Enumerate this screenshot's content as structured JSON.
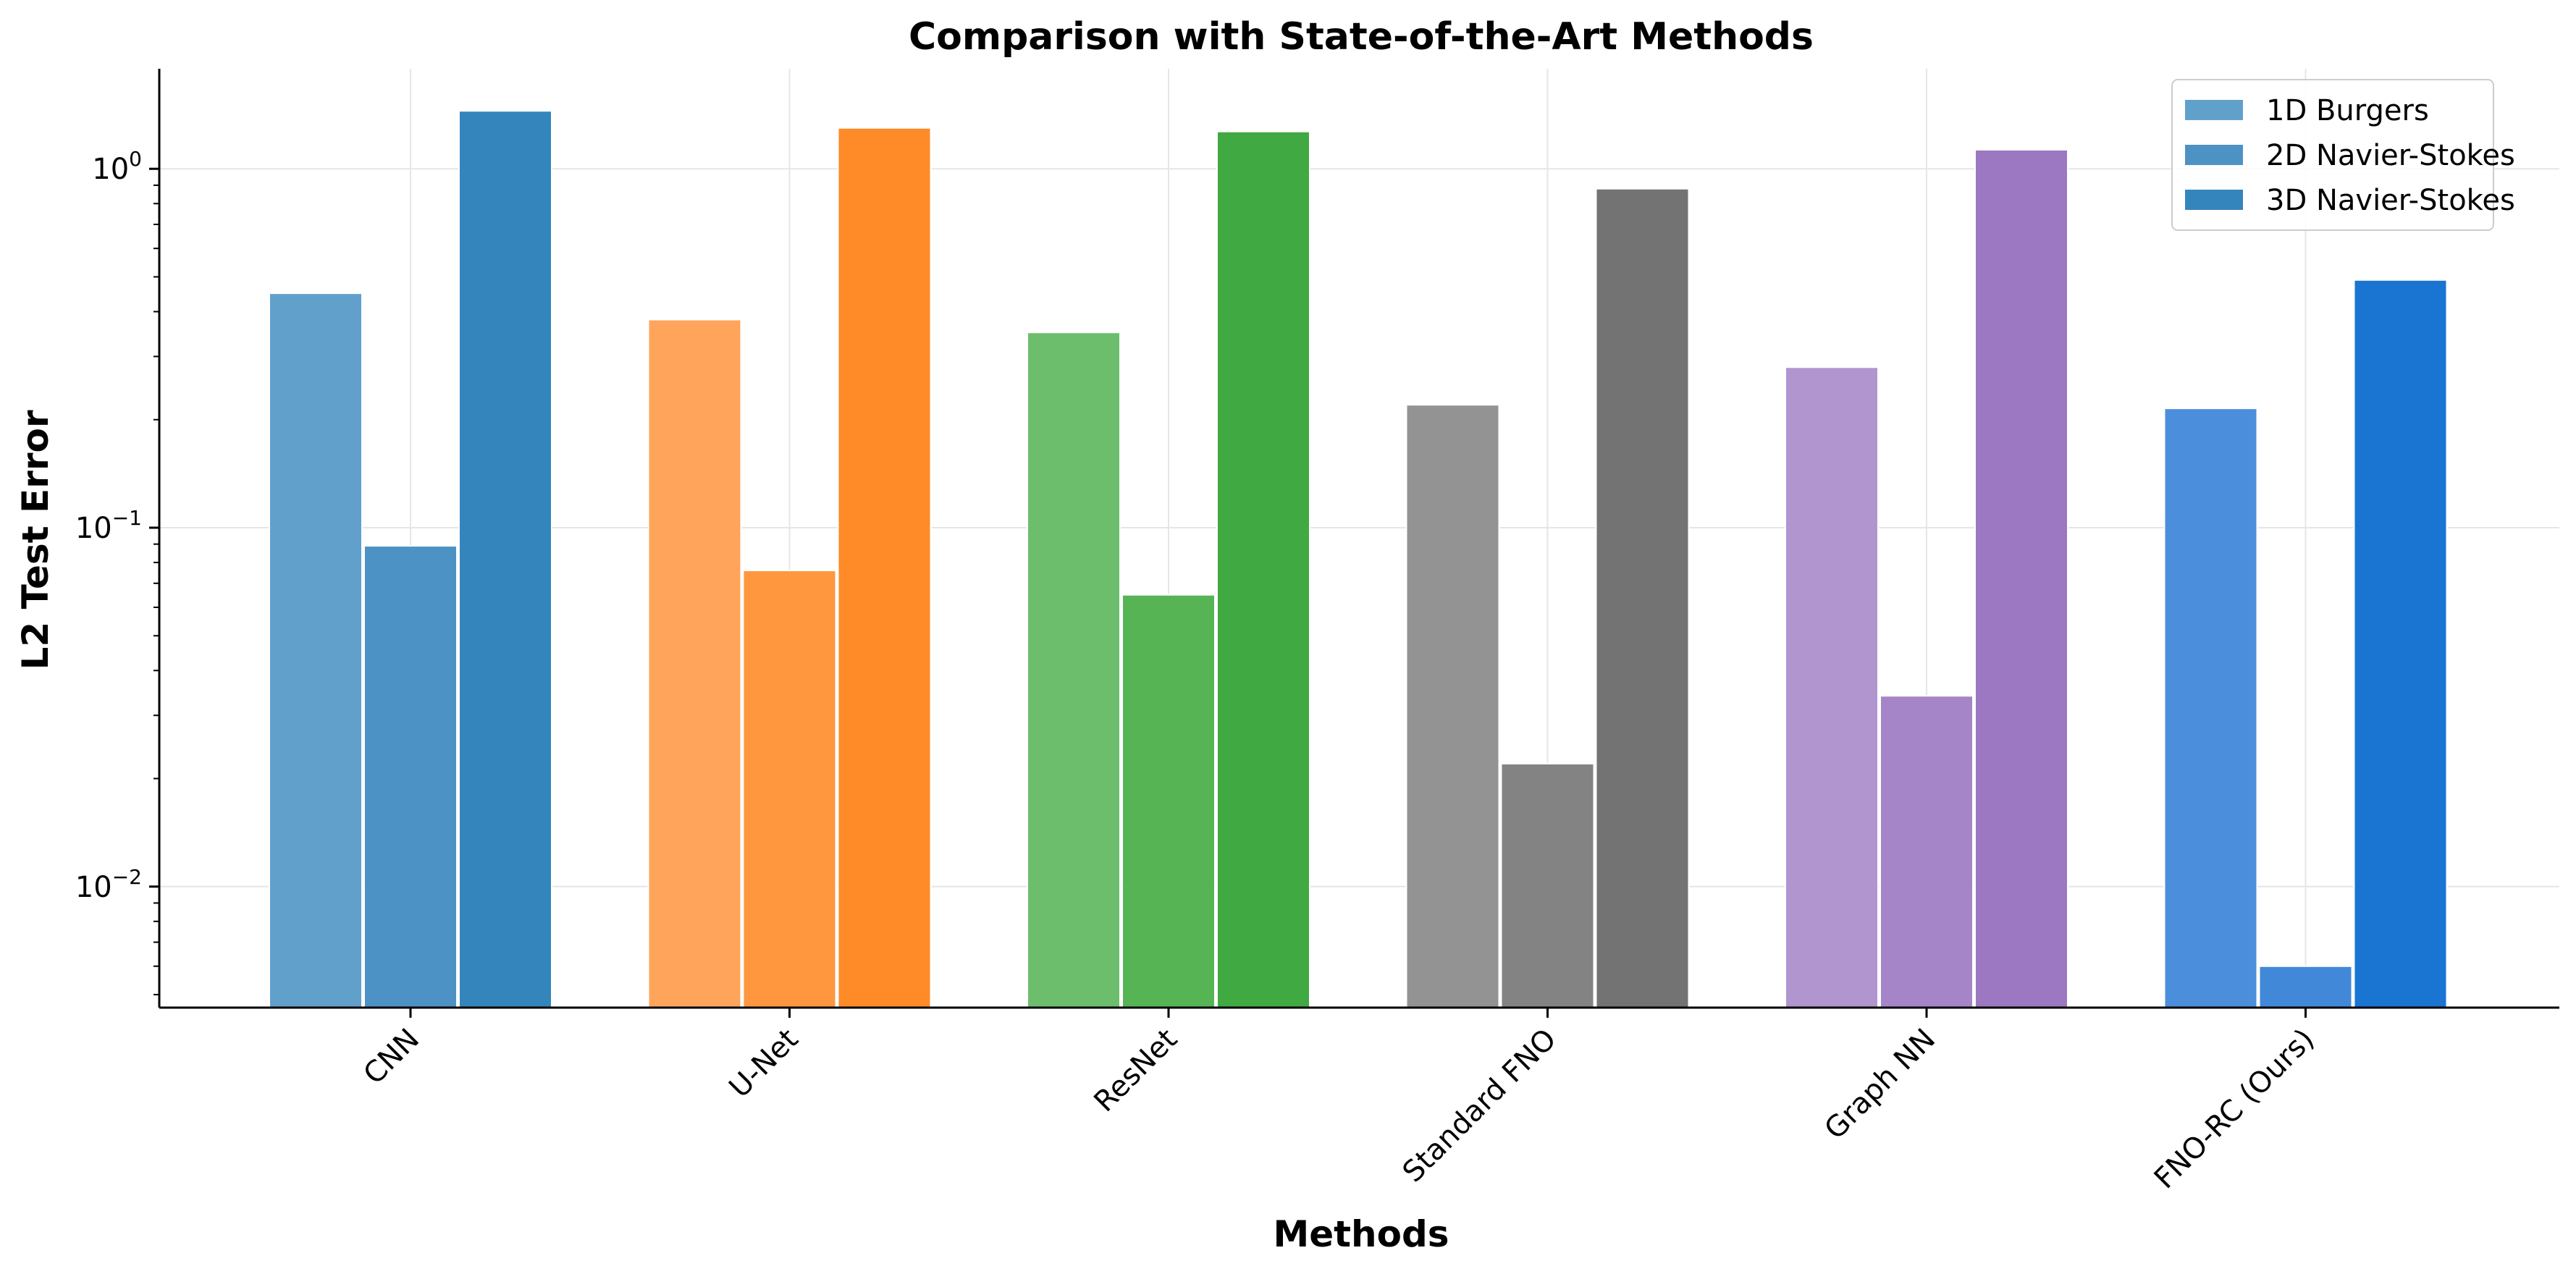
{
  "chart_data": {
    "type": "bar",
    "title": "Comparison with State-of-the-Art Methods",
    "xlabel": "Methods",
    "ylabel": "L2 Test Error",
    "yscale": "log",
    "ylim": [
      0.0046,
      1.9
    ],
    "yticks": [
      {
        "value": 0.01,
        "base": "10",
        "exp": "−2"
      },
      {
        "value": 0.1,
        "base": "10",
        "exp": "−1"
      },
      {
        "value": 1,
        "base": "10",
        "exp": "0"
      }
    ],
    "grid": true,
    "legend_position": "top-right",
    "categories": [
      "CNN",
      "U-Net",
      "ResNet",
      "Standard FNO",
      "Graph NN",
      "FNO-RC (Ours)"
    ],
    "series": [
      {
        "name": "1D Burgers",
        "values": [
          0.45,
          0.38,
          0.35,
          0.22,
          0.28,
          0.215
        ]
      },
      {
        "name": "2D Navier-Stokes",
        "values": [
          0.089,
          0.076,
          0.065,
          0.022,
          0.034,
          0.006
        ]
      },
      {
        "name": "3D Navier-Stokes",
        "values": [
          1.45,
          1.3,
          1.27,
          0.88,
          1.13,
          0.49
        ]
      }
    ],
    "colors": [
      [
        "#62a0cc",
        "#4d92c4",
        "#3585bd"
      ],
      [
        "#fea55b",
        "#fe973e",
        "#fe8b28"
      ],
      [
        "#6dbe6c",
        "#56b455",
        "#41a941"
      ],
      [
        "#939393",
        "#838383",
        "#737373"
      ],
      [
        "#b195cf",
        "#a584c8",
        "#9c78c2"
      ],
      [
        "#4b8fdc",
        "#4288d9",
        "#1a74d2"
      ]
    ],
    "legend_colors": [
      "#62a0cc",
      "#4d92c4",
      "#3585bd"
    ]
  }
}
